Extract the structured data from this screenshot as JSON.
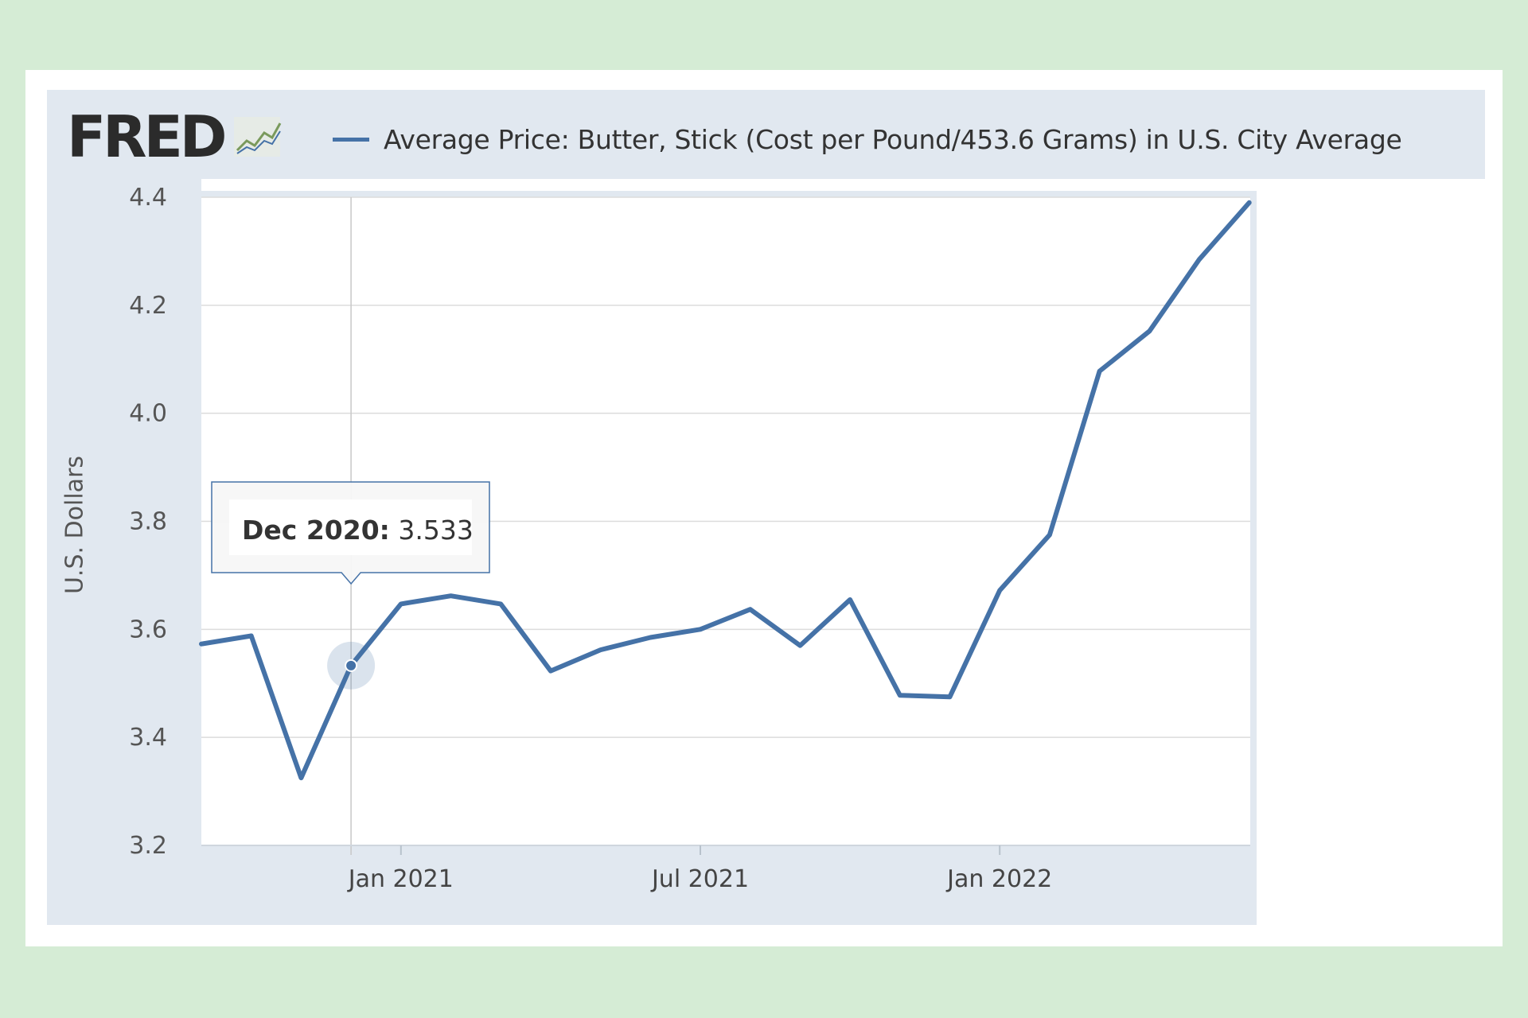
{
  "header": {
    "logo_text": "FRED",
    "series_label": "Average Price: Butter, Stick (Cost per Pound/453.6 Grams) in U.S. City Average"
  },
  "tooltip": {
    "date": "Dec 2020:",
    "value": "3.533"
  },
  "colors": {
    "series": "#4572a7",
    "background": "#d5ecd5",
    "panel": "#e1e8f0",
    "grid": "#dcdcdc"
  },
  "chart_data": {
    "type": "line",
    "title": "Average Price: Butter, Stick (Cost per Pound/453.6 Grams) in U.S. City Average",
    "xlabel": "",
    "ylabel": "U.S. Dollars",
    "ylim": [
      3.2,
      4.4
    ],
    "yticks": [
      "3.2",
      "3.4",
      "3.6",
      "3.8",
      "4.0",
      "4.2",
      "4.4"
    ],
    "xticks": [
      "Jan 2021",
      "Jul 2021",
      "Jan 2022"
    ],
    "grid": true,
    "legend": "top",
    "series": [
      {
        "name": "Average Price: Butter, Stick (Cost per Pound/453.6 Grams) in U.S. City Average",
        "x": [
          "2020-09",
          "2020-10",
          "2020-11",
          "2020-12",
          "2021-01",
          "2021-02",
          "2021-03",
          "2021-04",
          "2021-05",
          "2021-06",
          "2021-07",
          "2021-08",
          "2021-09",
          "2021-10",
          "2021-11",
          "2021-12",
          "2022-01",
          "2022-02",
          "2022-03",
          "2022-04",
          "2022-05",
          "2022-06"
        ],
        "values": [
          3.573,
          3.588,
          3.325,
          3.533,
          3.647,
          3.662,
          3.647,
          3.523,
          3.562,
          3.585,
          3.6,
          3.637,
          3.57,
          3.655,
          3.478,
          3.475,
          3.672,
          3.775,
          4.078,
          4.152,
          4.285,
          4.39
        ]
      }
    ],
    "highlight": {
      "x": "2020-12",
      "value": 3.533
    }
  }
}
